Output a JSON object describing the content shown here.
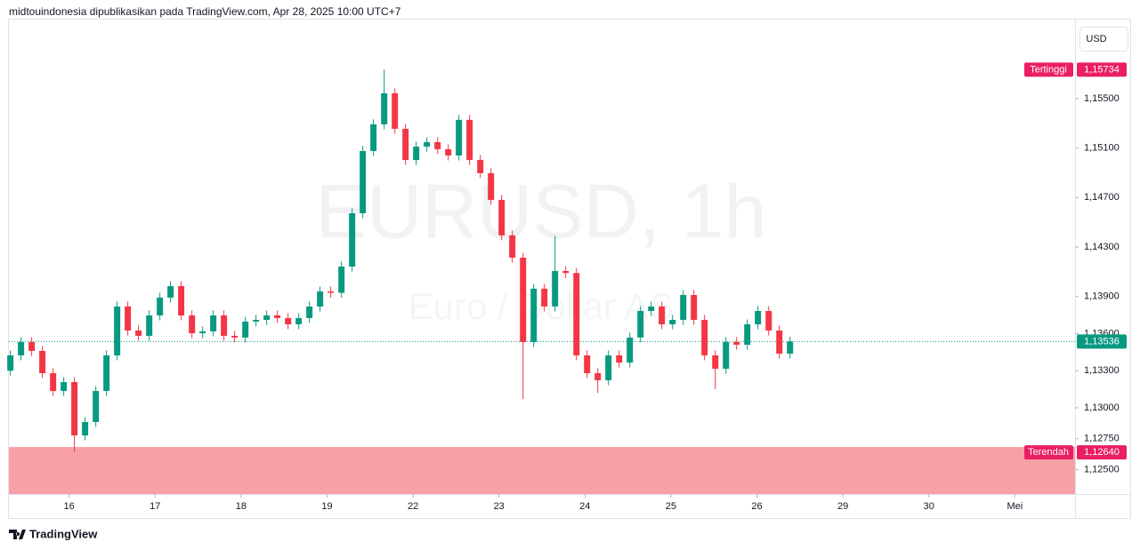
{
  "header": {
    "text": "midtouindonesia dipublikasikan pada TradingView.com, Apr 28, 2025 10:00 UTC+7"
  },
  "currency_button": "USD",
  "footer": {
    "brand": "TradingView"
  },
  "chart_data": {
    "type": "candlestick",
    "title": "EURUSD, 1h",
    "subtitle": "Euro / Dollar AS",
    "up_color": "#089981",
    "down_color": "#f23645",
    "x": [
      -0.683,
      -0.559,
      -0.435,
      -0.311,
      -0.186,
      -0.062,
      0.062,
      0.186,
      0.311,
      0.435,
      0.559,
      0.683,
      0.807,
      0.932,
      1.056,
      1.18,
      1.304,
      1.429,
      1.553,
      1.677,
      1.801,
      1.925,
      2.05,
      2.174,
      2.298,
      2.422,
      2.547,
      2.671,
      2.795,
      2.919,
      3.043,
      3.168,
      3.292,
      3.416,
      3.54,
      3.665,
      3.789,
      3.913,
      4.037,
      4.161,
      4.286,
      4.41,
      4.534,
      4.658,
      4.783,
      4.907,
      5.031,
      5.155,
      5.28,
      5.404,
      5.528,
      5.652,
      5.776,
      5.901,
      6.025,
      6.149,
      6.273,
      6.398,
      6.522,
      6.646,
      6.77,
      6.894,
      7.019,
      7.143,
      7.267,
      7.391,
      7.516,
      7.64,
      7.764,
      7.888,
      8.012,
      8.137,
      8.261,
      8.385
    ],
    "open": [
      1.133,
      1.13424,
      1.13532,
      1.1346,
      1.1328,
      1.13136,
      1.13208,
      1.12777,
      1.12885,
      1.13136,
      1.13424,
      1.13819,
      1.13625,
      1.13582,
      1.13747,
      1.13891,
      1.13984,
      1.13747,
      1.13603,
      1.13618,
      1.13747,
      1.13582,
      1.13568,
      1.13697,
      1.13711,
      1.13747,
      1.13726,
      1.13675,
      1.13726,
      1.13819,
      1.13941,
      1.1393,
      1.14142,
      1.14573,
      1.15076,
      1.15292,
      1.15543,
      1.15256,
      1.15004,
      1.15112,
      1.15148,
      1.15091,
      1.1504,
      1.15328,
      1.15004,
      1.14897,
      1.14681,
      1.14394,
      1.14214,
      1.13532,
      1.13963,
      1.13819,
      1.14106,
      1.1409,
      1.13424,
      1.1328,
      1.13223,
      1.13424,
      1.13366,
      1.13568,
      1.13783,
      1.13819,
      1.13675,
      1.13711,
      1.13912,
      1.13711,
      1.13424,
      1.13316,
      1.13532,
      1.1351,
      1.13675,
      1.13783,
      1.13625,
      1.13438
    ],
    "high": [
      1.13464,
      1.13572,
      1.13572,
      1.135,
      1.1332,
      1.13248,
      1.13248,
      1.12925,
      1.13176,
      1.13464,
      1.13859,
      1.13859,
      1.13665,
      1.13787,
      1.13931,
      1.14024,
      1.14024,
      1.13787,
      1.13658,
      1.13787,
      1.13787,
      1.13622,
      1.13737,
      1.13751,
      1.13787,
      1.13787,
      1.13766,
      1.13766,
      1.13859,
      1.13981,
      1.13981,
      1.14182,
      1.14613,
      1.15116,
      1.15332,
      1.15734,
      1.15583,
      1.15296,
      1.15152,
      1.15188,
      1.15188,
      1.15131,
      1.15368,
      1.15368,
      1.15044,
      1.14937,
      1.14721,
      1.14434,
      1.14254,
      1.14003,
      1.14003,
      1.1439,
      1.14146,
      1.1413,
      1.13464,
      1.1332,
      1.13464,
      1.13464,
      1.13608,
      1.13823,
      1.13859,
      1.13859,
      1.13751,
      1.13952,
      1.13952,
      1.13751,
      1.13464,
      1.13572,
      1.13572,
      1.13715,
      1.13823,
      1.13823,
      1.13665,
      1.13576
    ],
    "low": [
      1.1326,
      1.13384,
      1.1342,
      1.1324,
      1.13096,
      1.13096,
      1.1264,
      1.12737,
      1.12845,
      1.13096,
      1.13384,
      1.13585,
      1.13542,
      1.13542,
      1.13707,
      1.13851,
      1.13707,
      1.13563,
      1.13563,
      1.13578,
      1.13542,
      1.13528,
      1.13528,
      1.13657,
      1.13671,
      1.13686,
      1.13635,
      1.13635,
      1.13686,
      1.13779,
      1.1389,
      1.1389,
      1.14102,
      1.14533,
      1.15036,
      1.15252,
      1.15216,
      1.14964,
      1.14964,
      1.15072,
      1.15051,
      1.15,
      1.15,
      1.14964,
      1.14857,
      1.14641,
      1.14354,
      1.14174,
      1.1307,
      1.13492,
      1.13779,
      1.13779,
      1.1405,
      1.13384,
      1.1324,
      1.1312,
      1.13183,
      1.13326,
      1.13326,
      1.13528,
      1.13743,
      1.13635,
      1.13635,
      1.13671,
      1.13671,
      1.13384,
      1.1315,
      1.13276,
      1.1347,
      1.1347,
      1.13635,
      1.13585,
      1.13398,
      1.13398
    ],
    "close": [
      1.13424,
      1.13532,
      1.1346,
      1.1328,
      1.13136,
      1.13208,
      1.12777,
      1.12885,
      1.13136,
      1.13424,
      1.13819,
      1.13625,
      1.13582,
      1.13747,
      1.13891,
      1.13984,
      1.13747,
      1.13603,
      1.13618,
      1.13747,
      1.13582,
      1.13568,
      1.13697,
      1.13711,
      1.13747,
      1.13726,
      1.13675,
      1.13726,
      1.13819,
      1.13941,
      1.1393,
      1.14142,
      1.14573,
      1.15076,
      1.15292,
      1.15543,
      1.15256,
      1.15004,
      1.15112,
      1.15148,
      1.15091,
      1.1504,
      1.15328,
      1.15004,
      1.14897,
      1.14681,
      1.14394,
      1.14214,
      1.13532,
      1.13963,
      1.13819,
      1.14106,
      1.1409,
      1.13424,
      1.1328,
      1.13223,
      1.13424,
      1.13366,
      1.13568,
      1.13783,
      1.13819,
      1.13675,
      1.13711,
      1.13912,
      1.13711,
      1.13424,
      1.13316,
      1.13532,
      1.1351,
      1.13675,
      1.13783,
      1.13625,
      1.13438,
      1.13536
    ],
    "xlim": [
      -0.7,
      11.7
    ],
    "xticks": [
      {
        "value": 0,
        "label": "16"
      },
      {
        "value": 1,
        "label": "17"
      },
      {
        "value": 2,
        "label": "18"
      },
      {
        "value": 3,
        "label": "19"
      },
      {
        "value": 4,
        "label": "22"
      },
      {
        "value": 5,
        "label": "23"
      },
      {
        "value": 6,
        "label": "24"
      },
      {
        "value": 7,
        "label": "25"
      },
      {
        "value": 8,
        "label": "26"
      },
      {
        "value": 9,
        "label": "29"
      },
      {
        "value": 10,
        "label": "30"
      },
      {
        "value": 11,
        "label": "Mei"
      }
    ],
    "ylim": [
      1.12303,
      1.16139
    ],
    "yticks": [
      {
        "value": 1.125,
        "label": "1,12500"
      },
      {
        "value": 1.1275,
        "label": "1,12750"
      },
      {
        "value": 1.13,
        "label": "1,13000"
      },
      {
        "value": 1.133,
        "label": "1,13300"
      },
      {
        "value": 1.136,
        "label": "1,13600"
      },
      {
        "value": 1.139,
        "label": "1,13900"
      },
      {
        "value": 1.143,
        "label": "1,14300"
      },
      {
        "value": 1.147,
        "label": "1,14700"
      },
      {
        "value": 1.151,
        "label": "1,15100"
      },
      {
        "value": 1.155,
        "label": "1,15500"
      }
    ],
    "annotations": [
      {
        "label": "Tertinggi",
        "value": 1.15734,
        "value_label": "1,15734",
        "color": "#e91e63"
      },
      {
        "label": "Terendah",
        "value": 1.1264,
        "value_label": "1,12640",
        "color": "#e91e63"
      }
    ],
    "zone_color": "#f7a1a6",
    "last_price": {
      "value": 1.13536,
      "label": "1,13536",
      "color": "#089981"
    }
  }
}
